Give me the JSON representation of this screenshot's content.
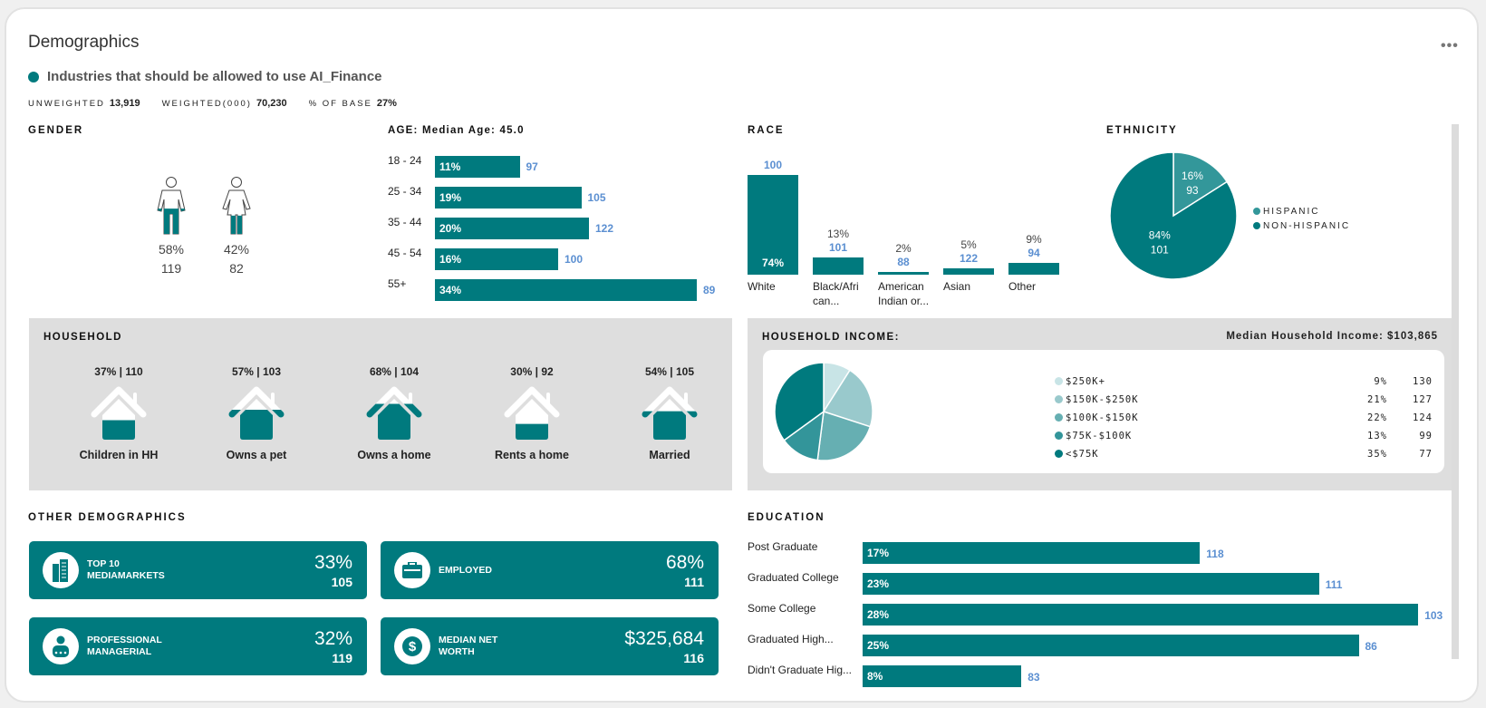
{
  "header": {
    "title": "Demographics",
    "more_label": "•••",
    "subtitle": "Industries that should be allowed to use AI_Finance",
    "accent": "#007a7e",
    "stats": [
      {
        "label": "UNWEIGHTED",
        "value": "13,919"
      },
      {
        "label": "WEIGHTED(000)",
        "value": "70,230"
      },
      {
        "label": "% OF BASE",
        "value": "27%"
      }
    ]
  },
  "gender": {
    "heading": "GENDER",
    "items": [
      {
        "name": "male",
        "pct": "58%",
        "index": "119",
        "fill": 0.58
      },
      {
        "name": "female",
        "pct": "42%",
        "index": "82",
        "fill": 0.42
      }
    ]
  },
  "age": {
    "heading": "AGE: Median Age: 45.0",
    "rows": [
      {
        "label": "18 - 24",
        "pct": 11,
        "pct_label": "11%",
        "index": "97"
      },
      {
        "label": "25 - 34",
        "pct": 19,
        "pct_label": "19%",
        "index": "105"
      },
      {
        "label": "35 - 44",
        "pct": 20,
        "pct_label": "20%",
        "index": "122"
      },
      {
        "label": "45 - 54",
        "pct": 16,
        "pct_label": "16%",
        "index": "100"
      },
      {
        "label": "55+",
        "pct": 34,
        "pct_label": "34%",
        "index": "89"
      }
    ]
  },
  "race": {
    "heading": "RACE",
    "bars": [
      {
        "label1": "White",
        "label2": "",
        "pct": 74,
        "pct_label": "74%",
        "index": "100"
      },
      {
        "label1": "Black/Afri",
        "label2": "can...",
        "pct": 13,
        "pct_label": "13%",
        "index": "101"
      },
      {
        "label1": "American",
        "label2": "Indian or...",
        "pct": 2,
        "pct_label": "2%",
        "index": "88"
      },
      {
        "label1": "Asian",
        "label2": "",
        "pct": 5,
        "pct_label": "5%",
        "index": "122"
      },
      {
        "label1": "Other",
        "label2": "",
        "pct": 9,
        "pct_label": "9%",
        "index": "94"
      }
    ]
  },
  "ethnicity": {
    "heading": "ETHNICITY",
    "slices": [
      {
        "label": "HISPANIC",
        "pct": 16,
        "pct_label": "16%",
        "index": "93",
        "color": "#33979a"
      },
      {
        "label": "NON-HISPANIC",
        "pct": 84,
        "pct_label": "84%",
        "index": "101",
        "color": "#007a7e"
      }
    ]
  },
  "household": {
    "heading": "HOUSEHOLD",
    "items": [
      {
        "value": "37% | 110",
        "label": "Children in HH",
        "fill": 0.37
      },
      {
        "value": "57% | 103",
        "label": "Owns a pet",
        "fill": 0.57
      },
      {
        "value": "68% | 104",
        "label": "Owns a home",
        "fill": 0.68
      },
      {
        "value": "30% | 92",
        "label": "Rents a home",
        "fill": 0.3
      },
      {
        "value": "54% | 105",
        "label": "Married",
        "fill": 0.54
      }
    ]
  },
  "income": {
    "heading": "HOUSEHOLD INCOME:",
    "median": "Median Household Income: $103,865",
    "slices": [
      {
        "label": "$250K+",
        "pct": 9,
        "pct_label": "9%",
        "index": "130",
        "color": "#c8e4e6"
      },
      {
        "label": "$150K-$250K",
        "pct": 21,
        "pct_label": "21%",
        "index": "127",
        "color": "#99c9cc"
      },
      {
        "label": "$100K-$150K",
        "pct": 22,
        "pct_label": "22%",
        "index": "124",
        "color": "#66afb2"
      },
      {
        "label": "$75K-$100K",
        "pct": 13,
        "pct_label": "13%",
        "index": "99",
        "color": "#33959a"
      },
      {
        "label": "<$75K",
        "pct": 35,
        "pct_label": "35%",
        "index": "77",
        "color": "#007a7e"
      }
    ]
  },
  "other": {
    "heading": "OTHER DEMOGRAPHICS",
    "tiles": [
      {
        "icon": "building-icon",
        "label1": "TOP 10",
        "label2": "MEDIAMARKETS",
        "value": "33%",
        "index": "105"
      },
      {
        "icon": "briefcase-icon",
        "label1": "EMPLOYED",
        "label2": "",
        "value": "68%",
        "index": "111"
      },
      {
        "icon": "person-icon",
        "label1": "PROFESSIONAL",
        "label2": "MANAGERIAL",
        "value": "32%",
        "index": "119"
      },
      {
        "icon": "dollar-icon",
        "label1": "MEDIAN NET",
        "label2": "WORTH",
        "value": "$325,684",
        "index": "116"
      }
    ]
  },
  "education": {
    "heading": "EDUCATION",
    "rows": [
      {
        "label": "Post Graduate",
        "pct": 17,
        "pct_label": "17%",
        "index": "118"
      },
      {
        "label": "Graduated College",
        "pct": 23,
        "pct_label": "23%",
        "index": "111"
      },
      {
        "label": "Some College",
        "pct": 28,
        "pct_label": "28%",
        "index": "103"
      },
      {
        "label": "Graduated High...",
        "pct": 25,
        "pct_label": "25%",
        "index": "86"
      },
      {
        "label": "Didn't Graduate Hig...",
        "pct": 8,
        "pct_label": "8%",
        "index": "83"
      }
    ]
  }
}
